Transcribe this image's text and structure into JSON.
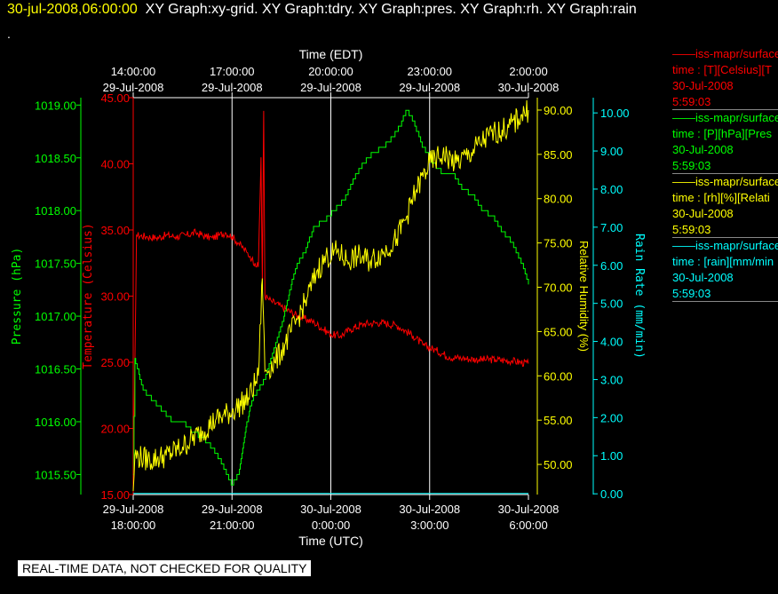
{
  "header": {
    "date": "30-jul-2008,06:00:00",
    "titles": "XY Graph:xy-grid.  XY Graph:tdry.  XY Graph:pres.  XY Graph:rh.  XY Graph:rain",
    "dot": "."
  },
  "disclaimer": "REAL-TIME DATA, NOT CHECKED FOR QUALITY",
  "legend": [
    {
      "line1": "iss-mapr/surface",
      "line2": "time : [T][Celsius][T",
      "line3": "30-Jul-2008",
      "line4": "5:59:03",
      "color": "#ff0000"
    },
    {
      "line1": "iss-mapr/surface",
      "line2": "time : [P][hPa][Pres",
      "line3": "30-Jul-2008",
      "line4": "5:59:03",
      "color": "#00ff00"
    },
    {
      "line1": "iss-mapr/surface",
      "line2": "time : [rh][%][Relati",
      "line3": "30-Jul-2008",
      "line4": "5:59:03",
      "color": "#ffff00"
    },
    {
      "line1": "iss-mapr/surface",
      "line2": "time : [rain][mm/min",
      "line3": "30-Jul-2008",
      "line4": "5:59:03",
      "color": "#00ffff"
    }
  ],
  "chart_data": {
    "type": "line",
    "xlabel_top": "Time (EDT)",
    "xlabel_bottom": "Time (UTC)",
    "top_ticks": [
      {
        "time": "14:00:00",
        "date": "29-Jul-2008"
      },
      {
        "time": "17:00:00",
        "date": "29-Jul-2008"
      },
      {
        "time": "20:00:00",
        "date": "29-Jul-2008"
      },
      {
        "time": "23:00:00",
        "date": "29-Jul-2008"
      },
      {
        "time": "2:00:00",
        "date": "30-Jul-2008"
      }
    ],
    "bottom_ticks": [
      {
        "date": "29-Jul-2008",
        "time": "18:00:00"
      },
      {
        "date": "29-Jul-2008",
        "time": "21:00:00"
      },
      {
        "date": "30-Jul-2008",
        "time": "0:00:00"
      },
      {
        "date": "30-Jul-2008",
        "time": "3:00:00"
      },
      {
        "date": "30-Jul-2008",
        "time": "6:00:00"
      }
    ],
    "x_range_utc": [
      "29-Jul-2008 18:00:00",
      "30-Jul-2008 06:00:00"
    ],
    "grid": "vertical lines at each major time tick",
    "axes": {
      "pressure": {
        "label": "Pressure (hPa)",
        "color": "#00ff00",
        "ylim": [
          1015.31,
          1019.07
        ],
        "ticks": [
          "1015.50",
          "1016.00",
          "1016.50",
          "1017.00",
          "1017.50",
          "1018.00",
          "1018.50",
          "1019.00"
        ]
      },
      "temperature": {
        "label": "Temperature (Celsius)",
        "color": "#ff0000",
        "ylim": [
          15,
          45
        ],
        "ticks": [
          "15.00",
          "20.00",
          "25.00",
          "30.00",
          "35.00",
          "40.00",
          "45.00"
        ]
      },
      "rh": {
        "label": "Relative Humidity (%)",
        "color": "#ffff00",
        "ylim": [
          46.6,
          91.4
        ],
        "ticks": [
          "50.00",
          "55.00",
          "60.00",
          "65.00",
          "70.00",
          "75.00",
          "80.00",
          "85.00",
          "90.00"
        ]
      },
      "rain": {
        "label": "Rain Rate (mm/min)",
        "color": "#00ffff",
        "ylim": [
          -0.02,
          10.4
        ],
        "ticks": [
          "0.00",
          "1.00",
          "2.00",
          "3.00",
          "4.00",
          "5.00",
          "6.00",
          "7.00",
          "8.00",
          "9.00",
          "10.00"
        ]
      }
    },
    "series": [
      {
        "axis": "temperature",
        "noise": 0.3,
        "x": [
          0,
          0.1,
          0.4,
          0.7,
          1.0,
          1.3,
          1.6,
          1.9,
          2.2,
          2.4,
          2.6,
          2.8,
          3.0,
          3.2,
          3.35,
          3.45,
          3.55,
          3.6,
          3.7,
          3.8,
          3.88,
          3.92,
          3.96,
          4.0,
          4.1,
          4.2,
          4.5,
          5.0,
          5.5,
          6.0,
          6.3,
          6.6,
          7.0,
          7.5,
          8.0,
          8.5,
          8.8,
          9.2,
          9.6,
          10.0,
          10.5,
          11.0,
          11.5,
          12.0
        ],
        "y": [
          15.0,
          34.6,
          34.5,
          34.4,
          34.6,
          34.5,
          34.6,
          34.8,
          34.5,
          34.4,
          34.6,
          34.8,
          34.5,
          34.0,
          33.6,
          33.3,
          33.0,
          32.8,
          32.5,
          32.2,
          40.5,
          31.0,
          44.0,
          30.0,
          29.8,
          29.6,
          29.2,
          28.5,
          28.0,
          27.1,
          27.0,
          27.5,
          27.9,
          28.0,
          27.8,
          27.0,
          26.3,
          25.9,
          25.4,
          25.3,
          25.2,
          25.2,
          25.1,
          24.9
        ]
      },
      {
        "axis": "pressure",
        "noise": 0,
        "x": [
          0,
          0.05,
          0.3,
          0.6,
          0.9,
          1.2,
          1.5,
          1.8,
          2.1,
          2.4,
          2.7,
          3.0,
          3.2,
          3.4,
          3.6,
          3.8,
          4.0,
          4.2,
          4.5,
          4.8,
          5.0,
          5.2,
          5.5,
          5.8,
          6.1,
          6.4,
          6.7,
          7.0,
          7.3,
          7.6,
          7.9,
          8.1,
          8.3,
          8.5,
          8.8,
          9.1,
          9.4,
          9.7,
          10.0,
          10.3,
          10.6,
          10.9,
          11.2,
          11.5,
          11.8,
          12.0
        ],
        "y": [
          1015.5,
          1016.6,
          1016.3,
          1016.2,
          1016.1,
          1016.0,
          1016.0,
          1015.9,
          1015.85,
          1015.75,
          1015.6,
          1015.4,
          1015.5,
          1015.9,
          1016.2,
          1016.3,
          1016.4,
          1016.6,
          1016.9,
          1017.3,
          1017.5,
          1017.6,
          1017.85,
          1017.9,
          1018.0,
          1018.1,
          1018.3,
          1018.45,
          1018.55,
          1018.6,
          1018.7,
          1018.8,
          1018.95,
          1018.85,
          1018.6,
          1018.45,
          1018.35,
          1018.35,
          1018.2,
          1018.15,
          1018.0,
          1017.95,
          1017.8,
          1017.7,
          1017.5,
          1017.3
        ]
      },
      {
        "axis": "rh",
        "noise": 1.4,
        "x": [
          0,
          0.05,
          0.5,
          1.0,
          1.5,
          2.0,
          2.5,
          3.0,
          3.5,
          3.8,
          3.92,
          4.0,
          4.3,
          4.6,
          5.0,
          5.3,
          5.6,
          5.9,
          6.2,
          6.5,
          6.8,
          7.2,
          7.6,
          8.0,
          8.3,
          8.6,
          9.0,
          9.4,
          9.8,
          10.2,
          10.6,
          11.0,
          11.4,
          11.8,
          12.0
        ],
        "y": [
          47.0,
          51.0,
          50.5,
          51.0,
          52.0,
          53.5,
          55.0,
          56.0,
          57.5,
          60.0,
          71.0,
          60.5,
          61.5,
          63.5,
          66.5,
          69.0,
          72.0,
          73.5,
          74.0,
          73.0,
          73.5,
          73.0,
          74.0,
          75.5,
          78.0,
          81.0,
          84.0,
          85.0,
          84.0,
          85.0,
          86.5,
          87.5,
          88.0,
          89.5,
          90.0
        ]
      },
      {
        "axis": "rain",
        "noise": 0,
        "x": [
          0,
          12
        ],
        "y": [
          0.01,
          0.01
        ]
      }
    ]
  }
}
